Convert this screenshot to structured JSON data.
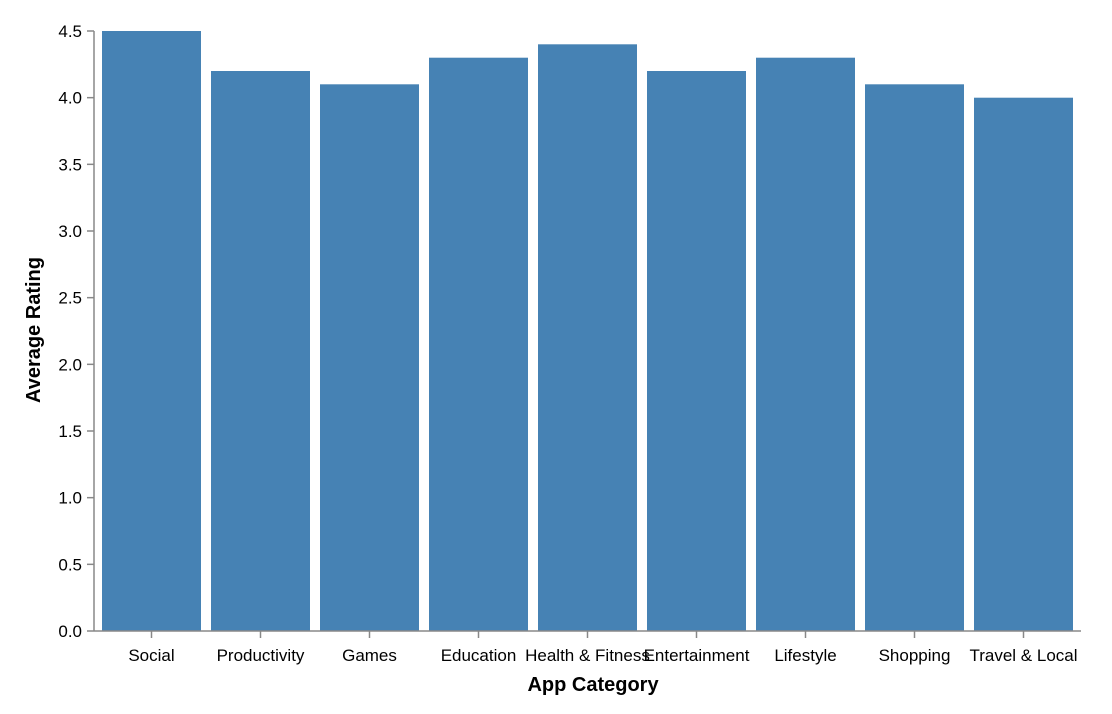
{
  "chart_data": {
    "type": "bar",
    "categories": [
      "Social",
      "Productivity",
      "Games",
      "Education",
      "Health & Fitness",
      "Entertainment",
      "Lifestyle",
      "Shopping",
      "Travel & Local"
    ],
    "values": [
      4.5,
      4.2,
      4.1,
      4.3,
      4.4,
      4.2,
      4.3,
      4.1,
      4.0
    ],
    "title": "",
    "xlabel": "App Category",
    "ylabel": "Average Rating",
    "ylim": [
      0,
      4.5
    ],
    "yticks": [
      "0.0",
      "0.5",
      "1.0",
      "1.5",
      "2.0",
      "2.5",
      "3.0",
      "3.5",
      "4.0",
      "4.5"
    ],
    "grid": false,
    "bar_color": "#4682b4",
    "axis_color": "#888888"
  }
}
